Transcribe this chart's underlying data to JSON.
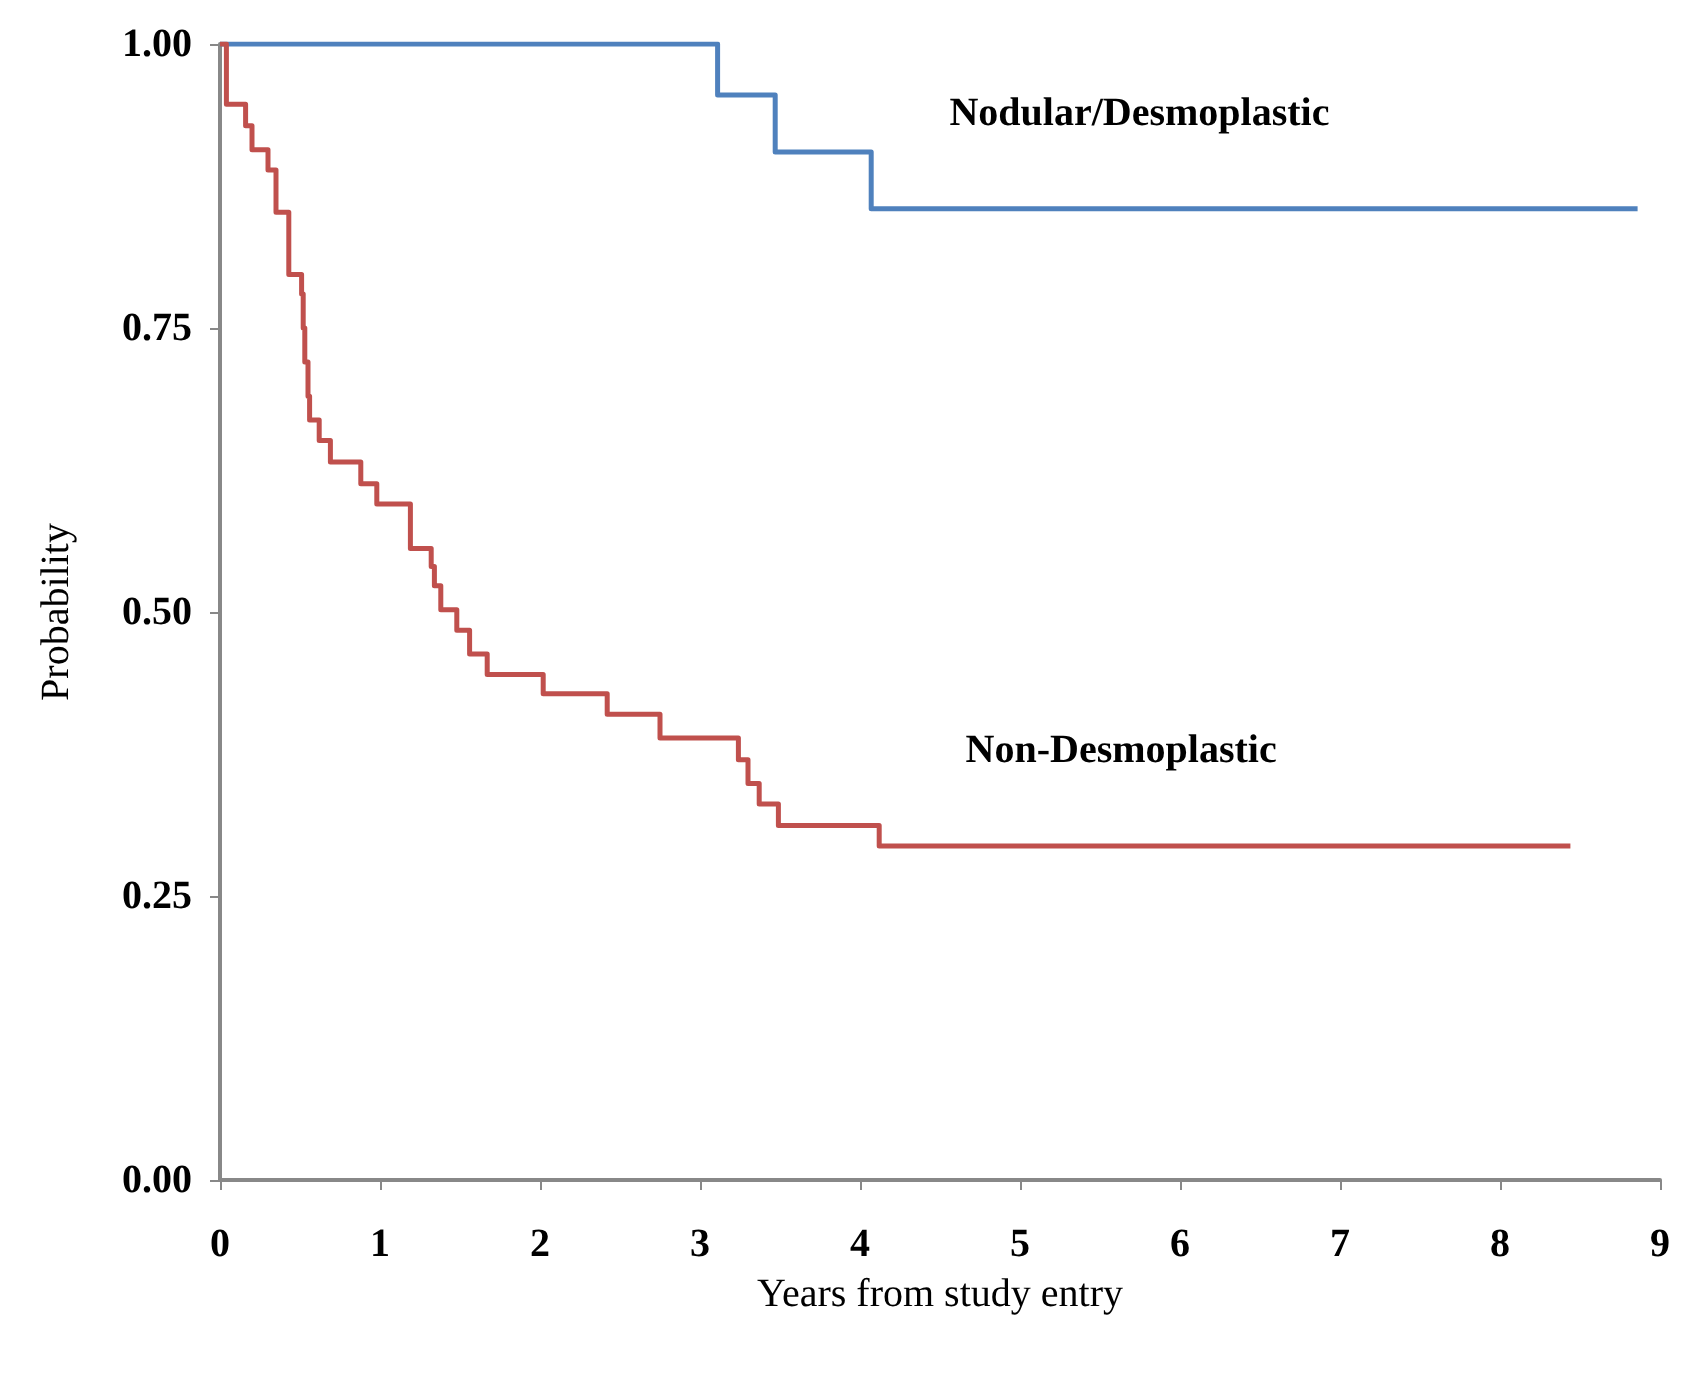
{
  "chart_data": {
    "type": "step",
    "xlabel": "Years from study entry",
    "ylabel": "Probability",
    "xlim": [
      0,
      9
    ],
    "xticks": [
      0,
      1,
      2,
      3,
      4,
      5,
      6,
      7,
      8,
      9
    ],
    "ylim": [
      0,
      1
    ],
    "yticks": [
      {
        "value": 0,
        "label": "0.00"
      },
      {
        "value": 0.25,
        "label": "0.25"
      },
      {
        "value": 0.5,
        "label": "0.50"
      },
      {
        "value": 0.75,
        "label": "0.75"
      },
      {
        "value": 1,
        "label": "1.00"
      }
    ],
    "grid": false,
    "marker": "none",
    "line_style": "solid",
    "series": [
      {
        "name": "Nodular/Desmoplastic",
        "color": "#4f81bd",
        "x": [
          0,
          3.11,
          3.47,
          4.07,
          8.86
        ],
        "values": [
          1,
          0.955,
          0.905,
          0.855,
          0.855
        ]
      },
      {
        "name": "Non-Desmoplastic",
        "color": "#c0504d",
        "x": [
          0,
          0.04,
          0.16,
          0.2,
          0.3,
          0.35,
          0.43,
          0.51,
          0.52,
          0.53,
          0.55,
          0.56,
          0.62,
          0.69,
          0.88,
          0.98,
          1.19,
          1.32,
          1.34,
          1.38,
          1.48,
          1.56,
          1.67,
          2.02,
          2.42,
          2.75,
          3.24,
          3.3,
          3.37,
          3.49,
          4.12,
          8.44
        ],
        "values": [
          1,
          0.947,
          0.928,
          0.907,
          0.889,
          0.852,
          0.797,
          0.78,
          0.75,
          0.72,
          0.69,
          0.669,
          0.651,
          0.632,
          0.613,
          0.595,
          0.556,
          0.54,
          0.523,
          0.502,
          0.484,
          0.463,
          0.445,
          0.428,
          0.41,
          0.389,
          0.37,
          0.349,
          0.331,
          0.312,
          0.294,
          0.294
        ]
      }
    ]
  }
}
